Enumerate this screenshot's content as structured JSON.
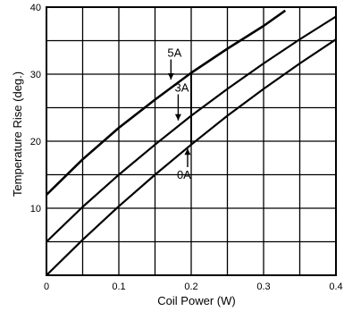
{
  "chart_data": {
    "type": "line",
    "title": "",
    "xlabel": "Coil Power (W)",
    "ylabel": "Temperature Rise (deg.)",
    "xlim": [
      0,
      0.4
    ],
    "ylim": [
      0,
      40
    ],
    "x_tick_labels": [
      "0",
      "0.1",
      "0.2",
      "0.3",
      "0.4"
    ],
    "y_tick_labels": [
      "10",
      "20",
      "30",
      "40"
    ],
    "grid": true,
    "series": [
      {
        "name": "5A",
        "x": [
          0,
          0.05,
          0.1,
          0.15,
          0.2,
          0.25,
          0.3,
          0.33
        ],
        "y": [
          12,
          17.3,
          22,
          26.2,
          30.2,
          33.8,
          37.2,
          39.5
        ]
      },
      {
        "name": "3A",
        "x": [
          0,
          0.05,
          0.1,
          0.15,
          0.2,
          0.25,
          0.3,
          0.35,
          0.4
        ],
        "y": [
          5,
          10.2,
          15,
          19.5,
          23.8,
          27.8,
          31.6,
          35.2,
          38.6
        ]
      },
      {
        "name": "0A",
        "x": [
          0,
          0.05,
          0.1,
          0.15,
          0.2,
          0.25,
          0.3,
          0.35,
          0.4
        ],
        "y": [
          0,
          5.3,
          10.3,
          15,
          19.5,
          23.8,
          27.8,
          31.6,
          35.2
        ]
      }
    ],
    "annotations": [
      {
        "text": "5A",
        "x": 0.177,
        "y": 32.6,
        "arrow_to": [
          0.172,
          29.2
        ]
      },
      {
        "text": "3A",
        "x": 0.187,
        "y": 27.4,
        "arrow_to": [
          0.182,
          23.1
        ]
      },
      {
        "text": "0A",
        "x": 0.19,
        "y": 14.4,
        "arrow_to": [
          0.195,
          18.9
        ]
      }
    ],
    "vertical_markers": [
      {
        "x": 0.2,
        "y_from": 19.5,
        "y_to": 30.2
      }
    ]
  }
}
